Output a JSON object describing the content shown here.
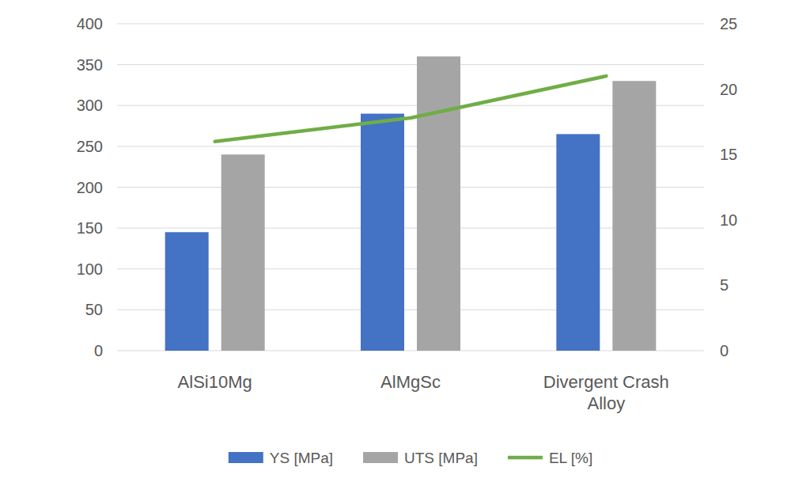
{
  "chart_data": {
    "type": "bar",
    "categories": [
      "AlSi10Mg",
      "AlMgSc",
      "Divergent Crash Alloy"
    ],
    "series": [
      {
        "name": "YS [MPa]",
        "color": "#4472c4",
        "values": [
          145,
          290,
          265
        ]
      },
      {
        "name": "UTS [MPa]",
        "color": "#a5a5a5",
        "values": [
          240,
          360,
          330
        ]
      },
      {
        "name": "EL [%]",
        "color": "#70ad47",
        "type": "line",
        "axis": "y2",
        "values": [
          16,
          17.8,
          21
        ]
      }
    ],
    "ylim": [
      0,
      400
    ],
    "yticks": [
      0,
      50,
      100,
      150,
      200,
      250,
      300,
      350,
      400
    ],
    "y2lim": [
      0,
      25
    ],
    "y2ticks": [
      0,
      5,
      10,
      15,
      20,
      25
    ],
    "grid": true,
    "legend": "bottom"
  }
}
